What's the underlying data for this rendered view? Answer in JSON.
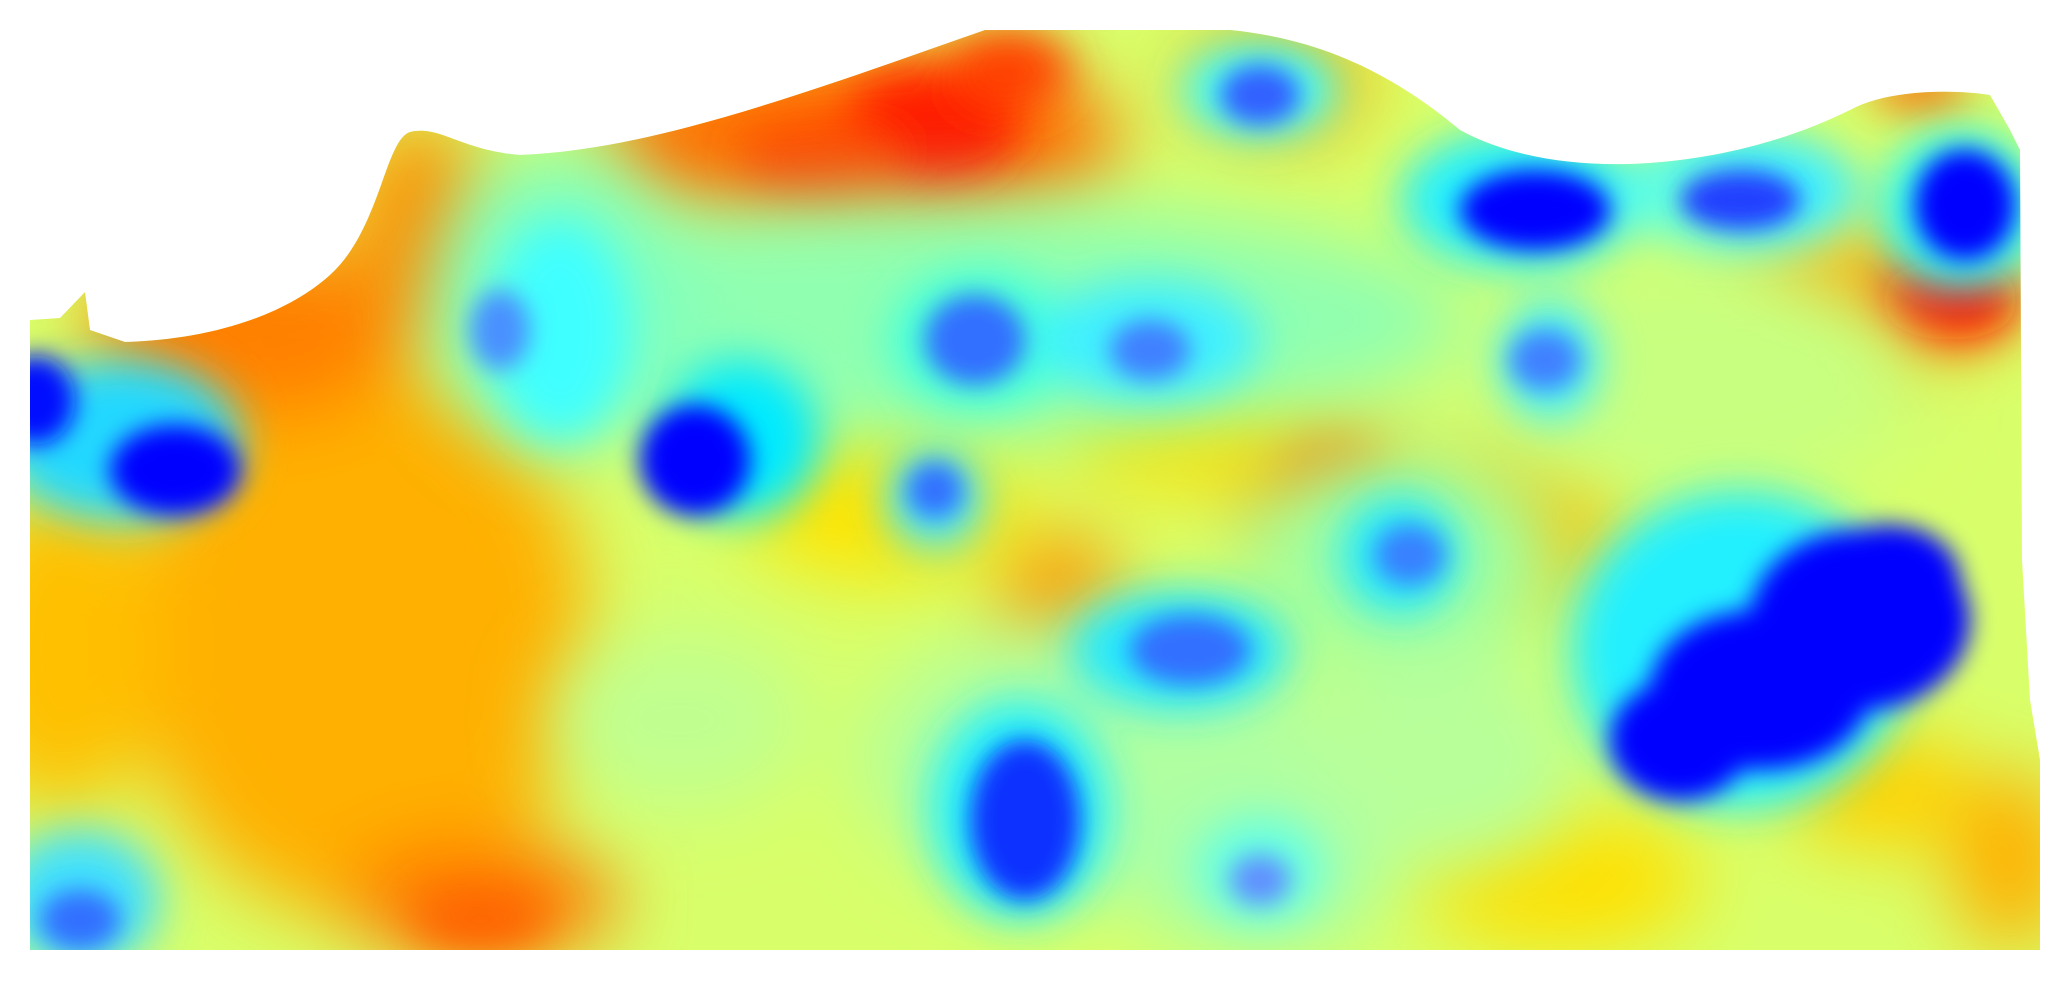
{
  "map": {
    "type": "interpolated-heatmap",
    "color_scale": [
      "#0000ff",
      "#00c8ff",
      "#00ffff",
      "#7fffb0",
      "#ffff00",
      "#ffa000",
      "#ff0000"
    ],
    "background": "#ffffff"
  }
}
